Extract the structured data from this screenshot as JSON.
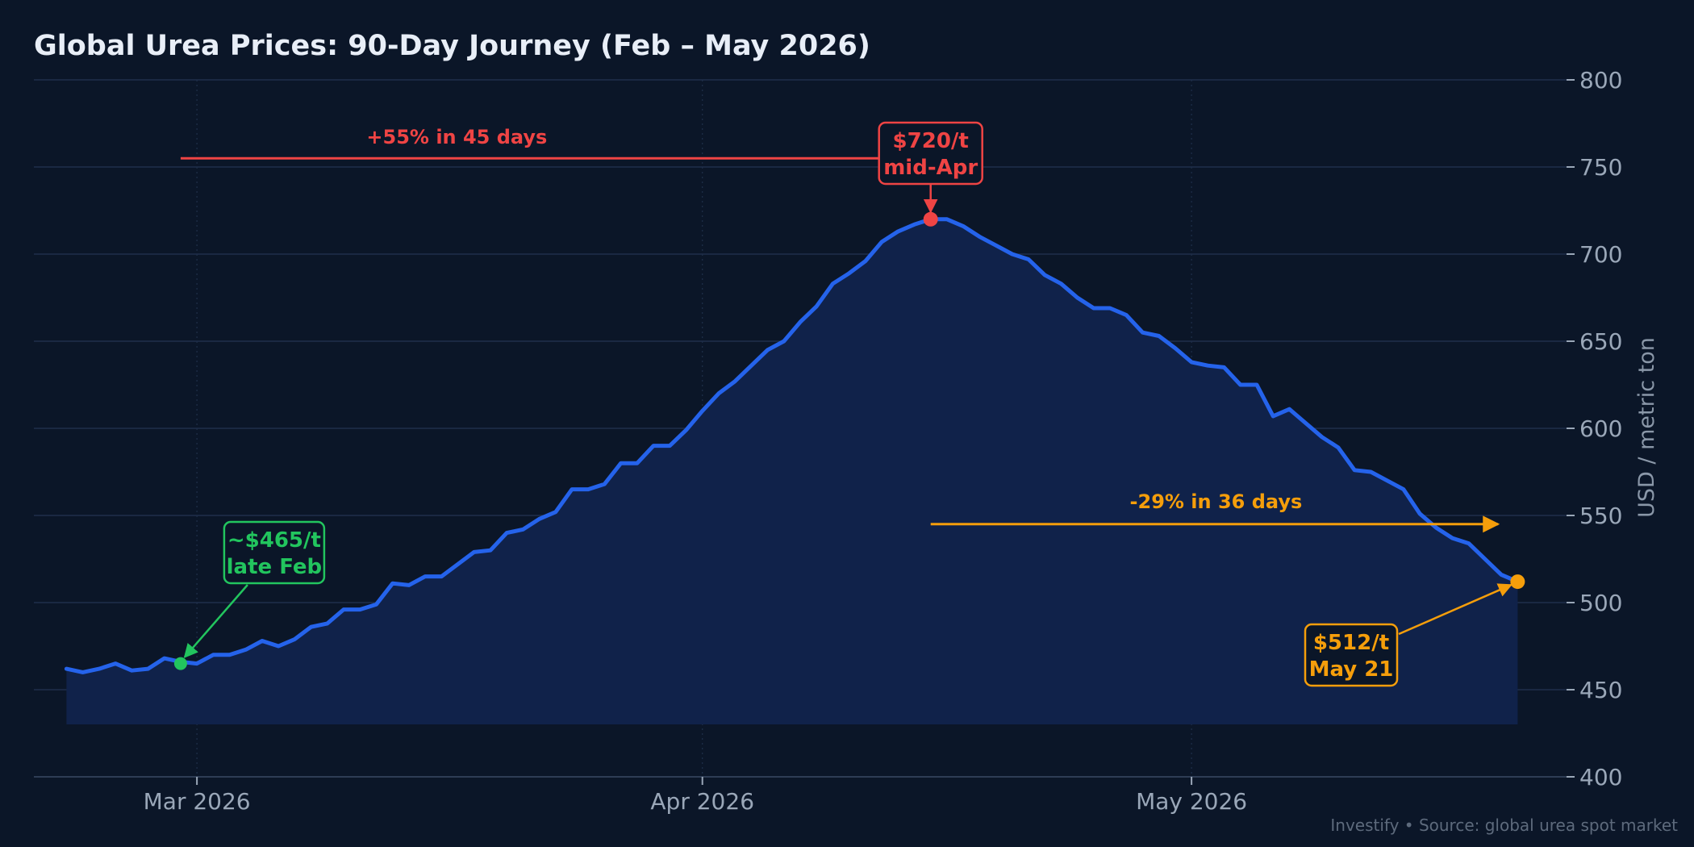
{
  "chart_data": {
    "type": "area",
    "title": "Global Urea Prices: 90-Day Journey (Feb – May 2026)",
    "ylabel": "USD / metric ton",
    "xlabel": "",
    "ylim": [
      400,
      800
    ],
    "y_ticks": [
      400,
      450,
      500,
      550,
      600,
      650,
      700,
      750,
      800
    ],
    "x_ticks": [
      {
        "label": "Mar 2026",
        "day": 8
      },
      {
        "label": "Apr 2026",
        "day": 39
      },
      {
        "label": "May 2026",
        "day": 69
      }
    ],
    "x_range_days": [
      -2,
      92
    ],
    "series": [
      {
        "start_date": "2026-02-21",
        "end_date": "2026-05-21",
        "values": [
          462,
          460,
          462,
          465,
          461,
          462,
          468,
          466,
          465,
          470,
          470,
          473,
          478,
          475,
          479,
          486,
          488,
          496,
          496,
          499,
          511,
          510,
          515,
          515,
          522,
          529,
          530,
          540,
          542,
          548,
          552,
          565,
          565,
          568,
          580,
          580,
          590,
          590,
          599,
          610,
          620,
          627,
          636,
          645,
          650,
          661,
          670,
          683,
          689,
          696,
          707,
          713,
          717,
          720,
          720,
          716,
          710,
          705,
          700,
          697,
          688,
          683,
          675,
          669,
          669,
          665,
          655,
          653,
          646,
          638,
          636,
          635,
          625,
          625,
          607,
          611,
          603,
          595,
          589,
          576,
          575,
          570,
          565,
          551,
          543,
          537,
          534,
          525,
          516,
          512
        ]
      }
    ],
    "grid": true,
    "legend": "none",
    "annotations": {
      "start": {
        "line1": "~$465/t",
        "line2": "late Feb",
        "value": 465,
        "day": 7,
        "color": "#22c55e"
      },
      "peak": {
        "line1": "$720/t",
        "line2": "mid-Apr",
        "value": 720,
        "day": 53,
        "color": "#ef4444"
      },
      "end": {
        "line1": "$512/t",
        "line2": "May 21",
        "value": 512,
        "day": 89,
        "color": "#f59e0b"
      },
      "rise": {
        "text": "+55% in 45 days",
        "color": "#ef4444",
        "level": 755,
        "from_day": 7,
        "to_day": 52
      },
      "fall": {
        "text": "-29% in 36 days",
        "color": "#f59e0b",
        "level": 545,
        "from_day": 53,
        "to_day": 88
      }
    },
    "colors": {
      "background": "#0b1628",
      "line": "#2563eb",
      "fill": "#10224a",
      "grid": "#1f2f4a"
    }
  },
  "footer": "Investify  •  Source: global urea spot market"
}
